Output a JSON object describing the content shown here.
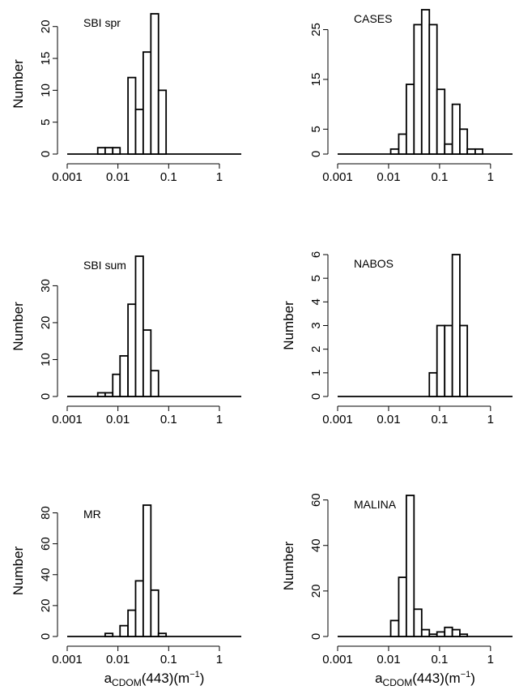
{
  "chart_data": [
    {
      "type": "bar",
      "title": "SBI spr",
      "ylabel": "Number",
      "xscale": "log",
      "xlim": [
        0.001,
        2.7
      ],
      "ylim": [
        0,
        22
      ],
      "yticks": [
        0,
        5,
        10,
        15,
        20
      ],
      "xticks": [
        "0.001",
        "0.01",
        "0.1",
        "1"
      ],
      "bin_edges": [
        0.004,
        0.0056,
        0.0079,
        0.011,
        0.0158,
        0.0223,
        0.0315,
        0.0446,
        0.063,
        0.089,
        0.126,
        0.178,
        0.25,
        0.35,
        0.5,
        0.7,
        1.0,
        1.4,
        2.0,
        2.7
      ],
      "values": [
        1,
        1,
        1,
        0,
        12,
        7,
        16,
        22,
        10,
        0,
        0,
        0,
        0,
        0,
        0,
        0,
        0,
        0,
        0
      ]
    },
    {
      "type": "bar",
      "title": "CASES",
      "ylabel": "",
      "xscale": "log",
      "xlim": [
        0.001,
        2.7
      ],
      "ylim": [
        0,
        29
      ],
      "yticks": [
        0,
        5,
        15,
        25
      ],
      "xticks": [
        "0.001",
        "0.01",
        "0.1",
        "1"
      ],
      "bin_edges": [
        0.004,
        0.0056,
        0.0079,
        0.011,
        0.0158,
        0.0223,
        0.0315,
        0.0446,
        0.063,
        0.089,
        0.126,
        0.178,
        0.25,
        0.35,
        0.5,
        0.7,
        1.0,
        1.4,
        2.0,
        2.7
      ],
      "values": [
        0,
        0,
        0,
        1,
        4,
        14,
        26,
        29,
        26,
        13,
        2,
        10,
        5,
        1,
        1,
        0,
        0,
        0,
        0
      ]
    },
    {
      "type": "bar",
      "title": "SBI sum",
      "ylabel": "Number",
      "xscale": "log",
      "xlim": [
        0.001,
        2.7
      ],
      "ylim": [
        0,
        38
      ],
      "yticks": [
        0,
        10,
        20,
        30
      ],
      "xticks": [
        "0.001",
        "0.01",
        "0.1",
        "1"
      ],
      "bin_edges": [
        0.004,
        0.0056,
        0.0079,
        0.011,
        0.0158,
        0.0223,
        0.0315,
        0.0446,
        0.063,
        0.089,
        0.126,
        0.178,
        0.25,
        0.35,
        0.5,
        0.7,
        1.0,
        1.4,
        2.0,
        2.7
      ],
      "values": [
        1,
        1,
        6,
        11,
        25,
        38,
        18,
        7,
        0,
        0,
        0,
        0,
        0,
        0,
        0,
        0,
        0,
        0,
        0
      ]
    },
    {
      "type": "bar",
      "title": "NABOS",
      "ylabel": "Number",
      "xscale": "log",
      "xlim": [
        0.001,
        2.7
      ],
      "ylim": [
        0,
        6
      ],
      "yticks": [
        0,
        1,
        2,
        3,
        4,
        5,
        6
      ],
      "xticks": [
        "0.001",
        "0.01",
        "0.1",
        "1"
      ],
      "bin_edges": [
        0.004,
        0.0056,
        0.0079,
        0.011,
        0.0158,
        0.0223,
        0.0315,
        0.0446,
        0.063,
        0.089,
        0.126,
        0.178,
        0.25,
        0.35,
        0.5,
        0.7,
        1.0,
        1.4,
        2.0,
        2.7
      ],
      "values": [
        0,
        0,
        0,
        0,
        0,
        0,
        0,
        0,
        1,
        3,
        3,
        6,
        3,
        0,
        0,
        0,
        0,
        0,
        0
      ]
    },
    {
      "type": "bar",
      "title": "MR",
      "ylabel": "Number",
      "xlabel": "a_CDOM(443)(m^-1)",
      "xscale": "log",
      "xlim": [
        0.001,
        2.7
      ],
      "ylim": [
        0,
        85
      ],
      "yticks": [
        0,
        20,
        40,
        60,
        80
      ],
      "xticks": [
        "0.001",
        "0.01",
        "0.1",
        "1"
      ],
      "bin_edges": [
        0.004,
        0.0056,
        0.0079,
        0.011,
        0.0158,
        0.0223,
        0.0315,
        0.0446,
        0.063,
        0.089,
        0.126,
        0.178,
        0.25,
        0.35,
        0.5,
        0.7,
        1.0,
        1.4,
        2.0,
        2.7
      ],
      "values": [
        0,
        2,
        0,
        7,
        17,
        36,
        85,
        30,
        2,
        0,
        0,
        0,
        0,
        0,
        0,
        0,
        0,
        0,
        0
      ]
    },
    {
      "type": "bar",
      "title": "MALINA",
      "ylabel": "Number",
      "xlabel": "a_CDOM(443)(m^-1)",
      "xscale": "log",
      "xlim": [
        0.001,
        2.7
      ],
      "ylim": [
        0,
        62
      ],
      "yticks": [
        0,
        20,
        40,
        60
      ],
      "xticks": [
        "0.001",
        "0.01",
        "0.1",
        "1"
      ],
      "bin_edges": [
        0.004,
        0.0056,
        0.0079,
        0.011,
        0.0158,
        0.0223,
        0.0315,
        0.0446,
        0.063,
        0.089,
        0.126,
        0.178,
        0.25,
        0.35,
        0.5,
        0.7,
        1.0,
        1.4,
        2.0,
        2.7
      ],
      "values": [
        0,
        0,
        0,
        7,
        26,
        62,
        12,
        3,
        1,
        2,
        4,
        3,
        1,
        0,
        0,
        0,
        0,
        0,
        0
      ]
    }
  ],
  "xlabel_main": "a",
  "xlabel_sub": "CDOM",
  "xlabel_rest": "(443)(m",
  "xlabel_sup": "−1",
  "xlabel_close": ")"
}
